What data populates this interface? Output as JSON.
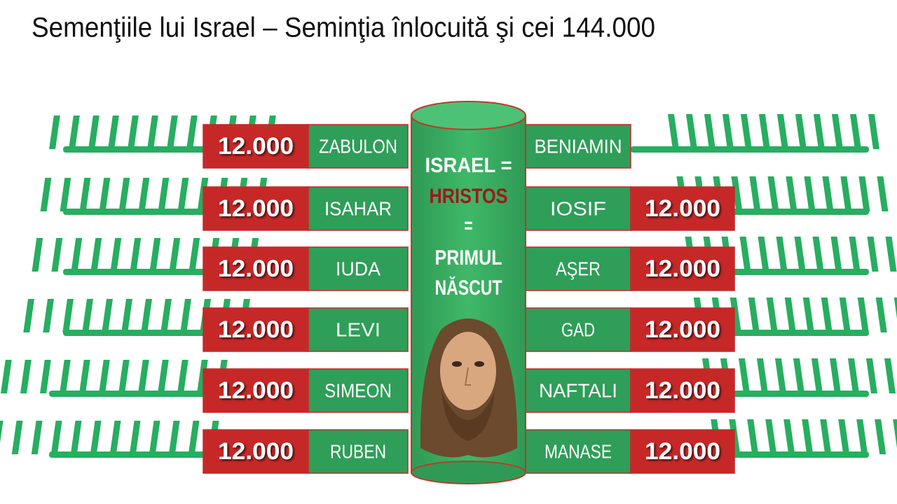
{
  "title": "Semenţiile lui Israel – Seminţia înlocuită şi cei 144.000",
  "center": {
    "lines": [
      "ISRAEL =",
      "HRISTOS",
      "=",
      "PRIMUL",
      "NĂSCUT"
    ]
  },
  "left": [
    {
      "count": "12.000",
      "name": "ZABULON"
    },
    {
      "count": "12.000",
      "name": "ISAHAR"
    },
    {
      "count": "12.000",
      "name": "IUDA"
    },
    {
      "count": "12.000",
      "name": "LEVI"
    },
    {
      "count": "12.000",
      "name": "SIMEON"
    },
    {
      "count": "12.000",
      "name": "RUBEN"
    }
  ],
  "right": [
    {
      "name": "BENIAMIN"
    },
    {
      "name": "IOSIF",
      "count": "12.000"
    },
    {
      "name": "AŞER",
      "count": "12.000"
    },
    {
      "name": "GAD",
      "count": "12.000"
    },
    {
      "name": "NAFTALI",
      "count": "12.000"
    },
    {
      "name": "MANASE",
      "count": "12.000"
    }
  ]
}
